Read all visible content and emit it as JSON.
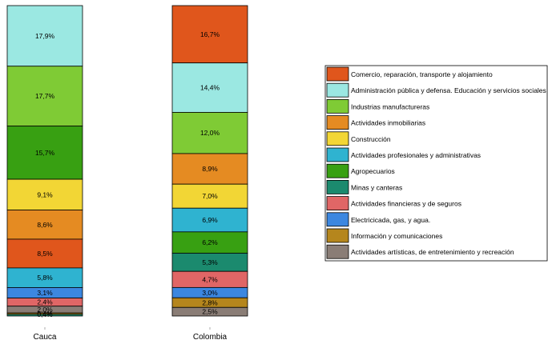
{
  "chart_data": {
    "type": "bar",
    "stacked": true,
    "percent_stacked": true,
    "categories": [
      "Cauca",
      "Colombia"
    ],
    "grid": false,
    "legend_position": "right",
    "series": [
      {
        "name": "Comercio, reparación, transporte y alojamiento",
        "color": "#E0561C",
        "values": [
          8.5,
          16.7
        ],
        "labels": [
          "8,5%",
          "16,7%"
        ]
      },
      {
        "name": "Administración pública y defensa. Educación y servicios sociales",
        "color": "#9BE8E2",
        "values": [
          17.9,
          14.4
        ],
        "labels": [
          "17,9%",
          "14,4%"
        ]
      },
      {
        "name": "Industrias manufactureras",
        "color": "#7FCB35",
        "values": [
          17.7,
          12.0
        ],
        "labels": [
          "17,7%",
          "12,0%"
        ]
      },
      {
        "name": "Actividades inmobiliarias",
        "color": "#E58B22",
        "values": [
          8.6,
          8.9
        ],
        "labels": [
          "8,6%",
          "8,9%"
        ]
      },
      {
        "name": "Construcción",
        "color": "#F2D635",
        "values": [
          9.1,
          7.0
        ],
        "labels": [
          "9,1%",
          "7,0%"
        ]
      },
      {
        "name": "Actividades profesionales y  administrativas",
        "color": "#2FB3D0",
        "values": [
          5.8,
          6.9
        ],
        "labels": [
          "5,8%",
          "6,9%"
        ]
      },
      {
        "name": "Agropecuarios",
        "color": "#38A012",
        "values": [
          15.7,
          6.2
        ],
        "labels": [
          "15,7%",
          "6,2%"
        ]
      },
      {
        "name": "Minas y canteras",
        "color": "#1B8A6E",
        "values": [
          0.5,
          5.3
        ],
        "labels": [
          "",
          "5,3%"
        ]
      },
      {
        "name": "Actividades financieras y de seguros",
        "color": "#E06666",
        "values": [
          2.4,
          4.7
        ],
        "labels": [
          "2,4%",
          "4,7%"
        ]
      },
      {
        "name": "Electricicada, gas, y agua.",
        "color": "#3C87E0",
        "values": [
          3.1,
          3.0
        ],
        "labels": [
          "3,1%",
          "3,0%"
        ]
      },
      {
        "name": "Información y comunicaciones",
        "color": "#B5861D",
        "values": [
          0.4,
          2.8
        ],
        "labels": [
          "0,4%",
          "2,8%"
        ]
      },
      {
        "name": "Actividades artísticas, de entretenimiento y recreación",
        "color": "#8A7D76",
        "values": [
          2.0,
          2.5
        ],
        "labels": [
          "2,0%",
          "2,5%"
        ]
      }
    ],
    "stack_order": {
      "Cauca": [
        "Administración pública y defensa. Educación y servicios sociales",
        "Industrias manufactureras",
        "Agropecuarios",
        "Construcción",
        "Actividades inmobiliarias",
        "Comercio, reparación, transporte y alojamiento",
        "Actividades profesionales y  administrativas",
        "Electricicada, gas, y agua.",
        "Actividades financieras y de seguros",
        "Actividades artísticas, de entretenimiento y recreación",
        "Información y comunicaciones",
        "Minas y canteras"
      ],
      "Colombia": [
        "Comercio, reparación, transporte y alojamiento",
        "Administración pública y defensa. Educación y servicios sociales",
        "Industrias manufactureras",
        "Actividades inmobiliarias",
        "Construcción",
        "Actividades profesionales y  administrativas",
        "Agropecuarios",
        "Minas y canteras",
        "Actividades financieras y de seguros",
        "Electricicada, gas, y agua.",
        "Información y comunicaciones",
        "Actividades artísticas, de entretenimiento y recreación"
      ]
    },
    "overlapping_labels": {
      "Cauca": "0,4%"
    }
  }
}
